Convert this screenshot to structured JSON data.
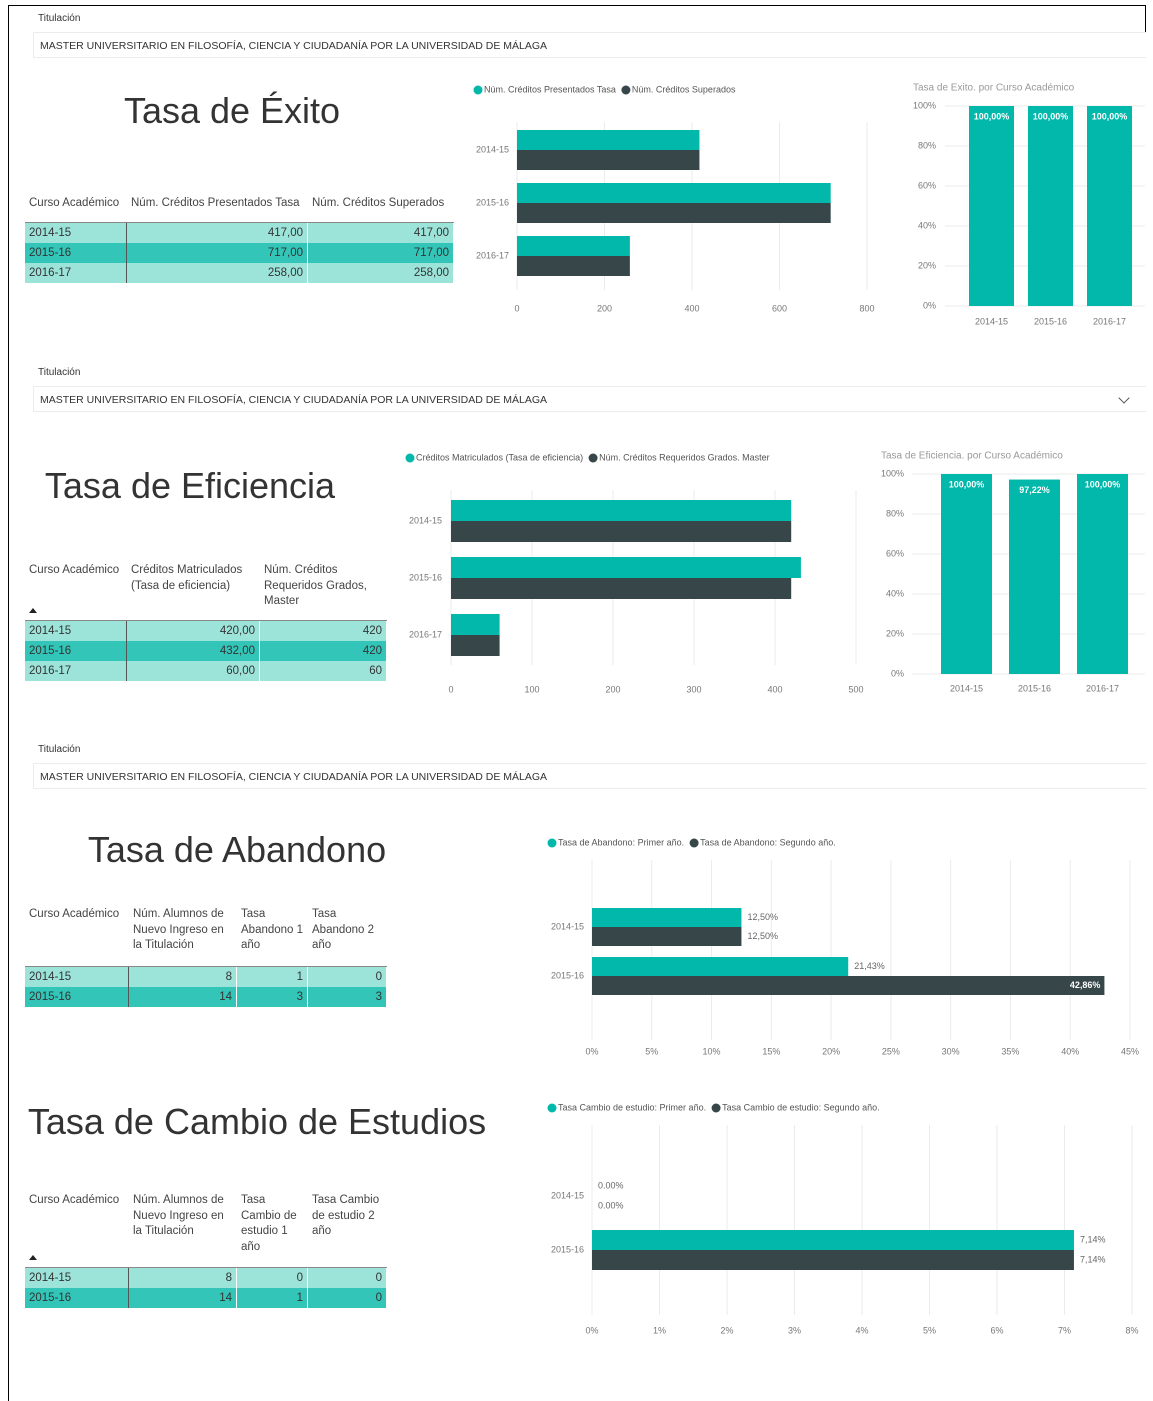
{
  "slicers": [
    {
      "label": "Titulación",
      "value": "MASTER UNIVERSITARIO EN FILOSOFÍA, CIENCIA Y CIUDADANÍA POR LA UNIVERSIDAD DE MÁLAGA"
    },
    {
      "label": "Titulación",
      "value": "MASTER UNIVERSITARIO EN FILOSOFÍA, CIENCIA Y CIUDADANÍA POR LA UNIVERSIDAD DE MÁLAGA"
    },
    {
      "label": "Titulación",
      "value": "MASTER UNIVERSITARIO EN FILOSOFÍA, CIENCIA Y CIUDADANÍA POR LA UNIVERSIDAD DE MÁLAGA"
    }
  ],
  "sections": [
    {
      "heading": "Tasa de Éxito",
      "table": {
        "columns": [
          "Curso Académico",
          "Núm. Créditos Presentados Tasa",
          "Núm. Créditos Superados"
        ],
        "rows": [
          [
            "2014-15",
            "417,00",
            "417,00"
          ],
          [
            "2015-16",
            "717,00",
            "717,00"
          ],
          [
            "2016-17",
            "258,00",
            "258,00"
          ]
        ]
      }
    },
    {
      "heading": "Tasa de Eficiencia",
      "table": {
        "columns": [
          "Curso Académico",
          "Créditos Matriculados (Tasa de eficiencia)",
          "Núm. Créditos Requeridos Grados, Master"
        ],
        "rows": [
          [
            "2014-15",
            "420,00",
            "420"
          ],
          [
            "2015-16",
            "432,00",
            "420"
          ],
          [
            "2016-17",
            "60,00",
            "60"
          ]
        ]
      }
    },
    {
      "heading": "Tasa de Abandono",
      "table": {
        "columns": [
          "Curso Académico",
          "Núm. Alumnos de Nuevo Ingreso en la Titulación",
          "Tasa Abandono 1 año",
          "Tasa Abandono 2 año"
        ],
        "rows": [
          [
            "2014-15",
            "8",
            "1",
            "0"
          ],
          [
            "2015-16",
            "14",
            "3",
            "3"
          ]
        ]
      }
    },
    {
      "heading": "Tasa de Cambio de Estudios",
      "table": {
        "columns": [
          "Curso Académico",
          "Núm. Alumnos de Nuevo Ingreso en la Titulación",
          "Tasa Cambio de estudio 1 año",
          "Tasa Cambio de estudio 2 año"
        ],
        "rows": [
          [
            "2014-15",
            "8",
            "0",
            "0"
          ],
          [
            "2015-16",
            "14",
            "1",
            "0"
          ]
        ]
      }
    }
  ],
  "chart_data": [
    {
      "type": "bar",
      "orientation": "horizontal",
      "categories": [
        "2014-15",
        "2015-16",
        "2016-17"
      ],
      "series": [
        {
          "name": "Núm. Créditos Presentados Tasa",
          "color": "#01B8AA",
          "values": [
            417,
            717,
            258
          ]
        },
        {
          "name": "Núm. Créditos Superados",
          "color": "#374649",
          "values": [
            417,
            717,
            258
          ]
        }
      ],
      "xlim": [
        0,
        800
      ],
      "xticks": [
        0,
        200,
        400,
        600,
        800
      ],
      "grid": true,
      "legend": "top-left"
    },
    {
      "type": "bar",
      "orientation": "vertical",
      "title": "Tasa de Exito. por Curso Académico",
      "categories": [
        "2014-15",
        "2015-16",
        "2016-17"
      ],
      "values": [
        100,
        100,
        100
      ],
      "value_labels": [
        "100,00%",
        "100,00%",
        "100,00%"
      ],
      "color": "#01B8AA",
      "ylim": [
        0,
        100
      ],
      "yticks": [
        {
          "value": 0,
          "label": "0%"
        },
        {
          "value": 20,
          "label": "20%"
        },
        {
          "value": 40,
          "label": "40%"
        },
        {
          "value": 60,
          "label": "60%"
        },
        {
          "value": 80,
          "label": "80%"
        },
        {
          "value": 100,
          "label": "100%"
        }
      ],
      "grid": true
    },
    {
      "type": "bar",
      "orientation": "horizontal",
      "categories": [
        "2014-15",
        "2015-16",
        "2016-17"
      ],
      "series": [
        {
          "name": "Créditos Matriculados (Tasa de eficiencia)",
          "color": "#01B8AA",
          "values": [
            420,
            432,
            60
          ]
        },
        {
          "name": "Núm. Créditos Requeridos Grados. Master",
          "color": "#374649",
          "values": [
            420,
            420,
            60
          ]
        }
      ],
      "xlim": [
        0,
        500
      ],
      "xticks": [
        0,
        100,
        200,
        300,
        400,
        500
      ],
      "grid": true,
      "legend": "top-left"
    },
    {
      "type": "bar",
      "orientation": "vertical",
      "title": "Tasa de Eficiencia. por Curso Académico",
      "categories": [
        "2014-15",
        "2015-16",
        "2016-17"
      ],
      "values": [
        100,
        97.22,
        100
      ],
      "value_labels": [
        "100,00%",
        "97,22%",
        "100,00%"
      ],
      "color": "#01B8AA",
      "ylim": [
        0,
        100
      ],
      "yticks": [
        {
          "value": 0,
          "label": "0%"
        },
        {
          "value": 20,
          "label": "20%"
        },
        {
          "value": 40,
          "label": "40%"
        },
        {
          "value": 60,
          "label": "60%"
        },
        {
          "value": 80,
          "label": "80%"
        },
        {
          "value": 100,
          "label": "100%"
        }
      ],
      "grid": true
    },
    {
      "type": "bar",
      "orientation": "horizontal",
      "categories": [
        "2014-15",
        "2015-16"
      ],
      "series": [
        {
          "name": "Tasa de Abandono: Primer año.",
          "color": "#01B8AA",
          "values": [
            12.5,
            21.43
          ],
          "value_labels": [
            "12,50%",
            "21,43%"
          ]
        },
        {
          "name": "Tasa de Abandono: Segundo año.",
          "color": "#374649",
          "values": [
            12.5,
            42.86
          ],
          "value_labels": [
            "12,50%",
            "42,86%"
          ]
        }
      ],
      "xlim": [
        0,
        45
      ],
      "xticks": [
        {
          "value": 0,
          "label": "0%"
        },
        {
          "value": 5,
          "label": "5%"
        },
        {
          "value": 10,
          "label": "10%"
        },
        {
          "value": 15,
          "label": "15%"
        },
        {
          "value": 20,
          "label": "20%"
        },
        {
          "value": 25,
          "label": "25%"
        },
        {
          "value": 30,
          "label": "30%"
        },
        {
          "value": 35,
          "label": "35%"
        },
        {
          "value": 40,
          "label": "40%"
        },
        {
          "value": 45,
          "label": "45%"
        }
      ],
      "grid": true,
      "legend": "top-left"
    },
    {
      "type": "bar",
      "orientation": "horizontal",
      "categories": [
        "2014-15",
        "2015-16"
      ],
      "series": [
        {
          "name": "Tasa Cambio de estudio: Primer año.",
          "color": "#01B8AA",
          "values": [
            0,
            7.14
          ],
          "value_labels": [
            "0.00%",
            "7,14%"
          ]
        },
        {
          "name": "Tasa Cambio de estudio: Segundo año.",
          "color": "#374649",
          "values": [
            0,
            7.14
          ],
          "value_labels": [
            "0.00%",
            "7,14%"
          ]
        }
      ],
      "xlim": [
        0,
        8
      ],
      "xticks": [
        {
          "value": 0,
          "label": "0%"
        },
        {
          "value": 1,
          "label": "1%"
        },
        {
          "value": 2,
          "label": "2%"
        },
        {
          "value": 3,
          "label": "3%"
        },
        {
          "value": 4,
          "label": "4%"
        },
        {
          "value": 5,
          "label": "5%"
        },
        {
          "value": 6,
          "label": "6%"
        },
        {
          "value": 7,
          "label": "7%"
        },
        {
          "value": 8,
          "label": "8%"
        }
      ],
      "grid": true,
      "legend": "top-left"
    }
  ]
}
